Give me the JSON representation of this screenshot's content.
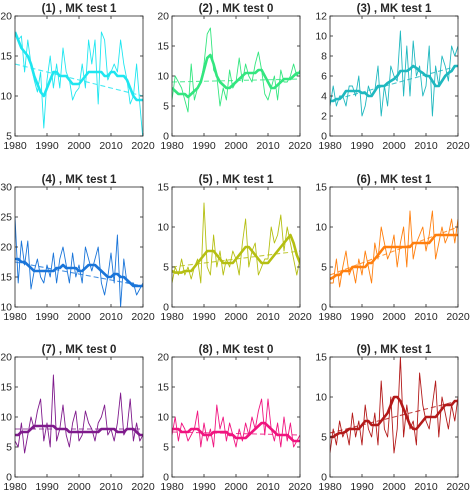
{
  "chart_data": [
    {
      "type": "line",
      "title": "(1) , MK test 1",
      "color": "#1ee6f0",
      "xlim": [
        1980,
        2020
      ],
      "ylim": [
        5,
        20
      ],
      "yticks": [
        5,
        10,
        15,
        20
      ],
      "xticks": [
        1980,
        1990,
        2000,
        2010,
        2020
      ],
      "series": [
        {
          "kind": "annual",
          "values": [
            18,
            17,
            17.5,
            13,
            17,
            14,
            12,
            10.5,
            13,
            6,
            12,
            15,
            11,
            14,
            11,
            16,
            13,
            12,
            9.5,
            10.5,
            11,
            14,
            11,
            17,
            14,
            17,
            9,
            18,
            17,
            12,
            13,
            14,
            13,
            17,
            14,
            12,
            9,
            10,
            14,
            9,
            4.5
          ]
        },
        {
          "kind": "smoothed",
          "values": [
            18,
            17,
            16,
            15.5,
            15,
            14,
            12.5,
            11.5,
            10.5,
            10,
            11,
            12,
            13,
            13,
            12.5,
            12.5,
            12.5,
            12,
            11.5,
            11.5,
            11.5,
            12,
            12.5,
            13,
            13,
            13,
            13,
            13,
            12.5,
            12.5,
            13,
            13,
            12.5,
            12.5,
            12.5,
            12,
            11,
            10,
            9.5,
            9.5,
            9.5
          ]
        },
        {
          "kind": "trend",
          "values": [
            14,
            10
          ]
        }
      ]
    },
    {
      "type": "line",
      "title": "(2) , MK test 0",
      "color": "#33e67f",
      "xlim": [
        1980,
        2020
      ],
      "ylim": [
        0,
        20
      ],
      "yticks": [
        0,
        5,
        10,
        15,
        20
      ],
      "xticks": [
        1980,
        1990,
        2000,
        2010,
        2020
      ],
      "series": [
        {
          "kind": "annual",
          "values": [
            6,
            10,
            9,
            8,
            6,
            4,
            12,
            6,
            8,
            9,
            12,
            17,
            18,
            11,
            10,
            5,
            8,
            6,
            11,
            8,
            9,
            13,
            9,
            12,
            10,
            9,
            12,
            14,
            11,
            7,
            6,
            8,
            10,
            6,
            11,
            9,
            9,
            10,
            12,
            10,
            11
          ]
        },
        {
          "kind": "smoothed",
          "values": [
            8,
            7.5,
            7,
            7,
            7,
            6.5,
            7,
            7.5,
            8,
            9,
            11,
            13,
            13.5,
            12,
            10,
            9,
            8.5,
            8,
            8,
            8.5,
            9,
            9.5,
            10,
            10.5,
            10.5,
            10.5,
            10.5,
            11,
            11,
            10,
            9,
            8,
            8,
            8.5,
            9,
            9.5,
            9.5,
            9.5,
            10,
            10.5,
            10.5
          ]
        },
        {
          "kind": "trend",
          "values": [
            9,
            9.5
          ]
        }
      ]
    },
    {
      "type": "line",
      "title": "(3) , MK test 1",
      "color": "#1fb8bf",
      "xlim": [
        1980,
        2020
      ],
      "ylim": [
        0,
        12
      ],
      "yticks": [
        0,
        2,
        4,
        6,
        8,
        10,
        12
      ],
      "xticks": [
        1980,
        1990,
        2000,
        2010,
        2020
      ],
      "series": [
        {
          "kind": "annual",
          "values": [
            3,
            5,
            3,
            4,
            4,
            3,
            5,
            5,
            4,
            6,
            2,
            3,
            5,
            4,
            4.5,
            7,
            2,
            5,
            3,
            7,
            6,
            5.5,
            10.5,
            4,
            9,
            4,
            9.5,
            6,
            7,
            4,
            5,
            9,
            2,
            7,
            5,
            8,
            7,
            5.5,
            9,
            8,
            9
          ]
        },
        {
          "kind": "smoothed",
          "values": [
            3.5,
            3.5,
            3.7,
            3.7,
            4,
            4.5,
            4.5,
            4.5,
            4.5,
            4.5,
            4.3,
            4.3,
            4,
            4,
            4.5,
            5,
            5,
            5,
            5.3,
            5.5,
            5.7,
            6,
            6.5,
            6.5,
            6.5,
            6.7,
            7,
            6.8,
            6.5,
            6.3,
            6,
            6,
            5.5,
            5,
            5,
            5.5,
            6,
            6.3,
            6.5,
            7,
            7
          ]
        },
        {
          "kind": "trend",
          "values": [
            3.5,
            7
          ]
        }
      ]
    },
    {
      "type": "line",
      "title": "(4) , MK test 1",
      "color": "#1a75d9",
      "xlim": [
        1980,
        2020
      ],
      "ylim": [
        10,
        30
      ],
      "yticks": [
        10,
        15,
        20,
        25,
        30
      ],
      "xticks": [
        1980,
        1990,
        2000,
        2010,
        2020
      ],
      "series": [
        {
          "kind": "annual",
          "values": [
            25,
            14,
            21,
            17,
            21,
            13,
            16,
            18,
            15,
            14,
            17,
            15,
            19,
            14,
            18,
            20,
            17,
            14,
            19,
            15,
            17,
            14,
            20,
            18,
            16,
            18,
            20,
            14,
            12,
            15,
            19,
            14,
            22,
            10,
            18,
            14,
            14,
            14,
            12,
            13,
            14
          ]
        },
        {
          "kind": "smoothed",
          "values": [
            18,
            18,
            17.5,
            17.5,
            17,
            16.5,
            16,
            16,
            16,
            16,
            16,
            16,
            16,
            16.5,
            16.5,
            17,
            16.5,
            16.5,
            16.5,
            16.5,
            16,
            16,
            16.5,
            17,
            17,
            17,
            16.5,
            16,
            15.5,
            15,
            15,
            15.5,
            15.5,
            15,
            15,
            14.5,
            14,
            13.5,
            13.5,
            13.5,
            13.5
          ]
        },
        {
          "kind": "trend",
          "values": [
            17.5,
            13.5
          ]
        }
      ]
    },
    {
      "type": "line",
      "title": "(5) , MK test 1",
      "color": "#b5bf12",
      "xlim": [
        1980,
        2020
      ],
      "ylim": [
        0,
        15
      ],
      "yticks": [
        0,
        5,
        10,
        15
      ],
      "xticks": [
        1980,
        1990,
        2000,
        2010,
        2020
      ],
      "series": [
        {
          "kind": "annual",
          "values": [
            3,
            5,
            4,
            6,
            4,
            5,
            3.5,
            5,
            6,
            3,
            13,
            5,
            4,
            9,
            5,
            7,
            4,
            6,
            5,
            7,
            6,
            4,
            8,
            11,
            5,
            7,
            8,
            4,
            5,
            6,
            6,
            10,
            8,
            9,
            11.5,
            7,
            10,
            8,
            6,
            4,
            6
          ]
        },
        {
          "kind": "smoothed",
          "values": [
            4.5,
            4.3,
            4.3,
            4.3,
            4.5,
            4.5,
            4.5,
            5,
            5.5,
            6,
            6.5,
            7,
            7,
            7,
            6.5,
            6,
            5.5,
            5.5,
            5.5,
            5.5,
            6,
            6.5,
            7,
            7.5,
            7.5,
            7,
            6.5,
            6,
            5.5,
            5.5,
            5.5,
            6,
            6.5,
            7,
            7.5,
            8,
            8.5,
            9,
            8,
            6.5,
            5.5
          ]
        },
        {
          "kind": "trend",
          "values": [
            5,
            7
          ]
        }
      ]
    },
    {
      "type": "line",
      "title": "(6) , MK test 1",
      "color": "#ff7f0e",
      "xlim": [
        1980,
        2020
      ],
      "ylim": [
        0,
        15
      ],
      "yticks": [
        0,
        5,
        10,
        15
      ],
      "xticks": [
        1980,
        1990,
        2000,
        2010,
        2020
      ],
      "series": [
        {
          "kind": "annual",
          "values": [
            3,
            3,
            6,
            2.5,
            5,
            7,
            4,
            5,
            3,
            6,
            4,
            7,
            5,
            3,
            8,
            6,
            10,
            8,
            6,
            7,
            9,
            5,
            8,
            10,
            5,
            12,
            6,
            8,
            9,
            10,
            7,
            9,
            12,
            6,
            8,
            10,
            8,
            9,
            11,
            8,
            11
          ]
        },
        {
          "kind": "smoothed",
          "values": [
            3.5,
            3.7,
            4,
            4,
            4.5,
            4.5,
            4.5,
            5,
            5,
            5,
            5,
            5,
            5.5,
            5.5,
            6,
            6.5,
            7,
            7.5,
            7.5,
            7.5,
            7.5,
            7.5,
            7.5,
            7.5,
            7.5,
            7.5,
            8,
            8,
            8,
            8,
            8,
            8,
            8.5,
            9,
            9,
            9,
            9,
            9,
            9,
            9,
            9
          ]
        },
        {
          "kind": "trend",
          "values": [
            4,
            10
          ]
        }
      ]
    },
    {
      "type": "line",
      "title": "(7) , MK test 0",
      "color": "#7f1a8c",
      "xlim": [
        1980,
        2020
      ],
      "ylim": [
        0,
        20
      ],
      "yticks": [
        0,
        5,
        10,
        15,
        20
      ],
      "xticks": [
        1980,
        1990,
        2000,
        2010,
        2020
      ],
      "series": [
        {
          "kind": "annual",
          "values": [
            6,
            5,
            9,
            4,
            7,
            10,
            8,
            11,
            13,
            6,
            9,
            5,
            17,
            6,
            8,
            12,
            7,
            5,
            9,
            11,
            6,
            7,
            11,
            9,
            8,
            6,
            9,
            10,
            12,
            7,
            8,
            6,
            9,
            14,
            7,
            8,
            13,
            6,
            9,
            6,
            7
          ]
        },
        {
          "kind": "smoothed",
          "values": [
            7,
            7,
            7.5,
            7.5,
            7.5,
            8,
            8.5,
            8.5,
            8.5,
            8.5,
            8.5,
            8.5,
            8.5,
            8,
            8,
            8,
            8,
            7.5,
            7.5,
            7.5,
            7.5,
            7.5,
            7.5,
            7.5,
            7.5,
            7.5,
            7.5,
            8,
            8,
            8,
            8,
            8,
            7.5,
            7.5,
            7.5,
            8,
            8,
            8,
            7.5,
            7,
            7
          ]
        },
        {
          "kind": "trend",
          "values": [
            8,
            8
          ]
        }
      ]
    },
    {
      "type": "line",
      "title": "(8) , MK test 0",
      "color": "#f0147f",
      "xlim": [
        1980,
        2020
      ],
      "ylim": [
        0,
        20
      ],
      "yticks": [
        0,
        5,
        10,
        15,
        20
      ],
      "xticks": [
        1980,
        1990,
        2000,
        2010,
        2020
      ],
      "series": [
        {
          "kind": "annual",
          "values": [
            7,
            10,
            6,
            9,
            8,
            6,
            7,
            8,
            11,
            5,
            9,
            6,
            8,
            5,
            12,
            8,
            10,
            6,
            9,
            7,
            5,
            8,
            6,
            9,
            7,
            10,
            8,
            11,
            13,
            7,
            13,
            8,
            6,
            9,
            5,
            10,
            6,
            9,
            5,
            6,
            7
          ]
        },
        {
          "kind": "smoothed",
          "values": [
            8,
            8,
            8,
            7.5,
            7.5,
            7.5,
            8,
            8,
            8,
            7.5,
            7,
            7,
            7,
            7.5,
            7.5,
            7.5,
            7.5,
            7.5,
            7,
            7,
            6.5,
            6.5,
            6.5,
            6.5,
            7,
            7.5,
            8,
            8.5,
            9,
            9,
            8.5,
            8,
            7.5,
            7,
            7,
            7,
            7,
            6.5,
            6,
            6,
            6
          ]
        },
        {
          "kind": "trend",
          "values": [
            7.5,
            7
          ]
        }
      ]
    },
    {
      "type": "line",
      "title": "(9) , MK test 1",
      "color": "#b31a1a",
      "xlim": [
        1980,
        2020
      ],
      "ylim": [
        0,
        15
      ],
      "yticks": [
        0,
        5,
        10,
        15
      ],
      "xticks": [
        1980,
        1990,
        2000,
        2010,
        2020
      ],
      "series": [
        {
          "kind": "annual",
          "values": [
            3,
            6,
            4,
            7,
            5,
            6,
            4,
            8,
            5,
            7,
            4,
            9,
            6,
            5,
            8,
            4,
            12,
            6,
            5,
            10,
            3,
            6,
            15,
            5,
            9,
            6,
            7,
            4,
            13,
            9,
            7,
            6,
            9,
            12,
            5,
            10,
            8,
            6,
            9,
            7,
            10
          ]
        },
        {
          "kind": "smoothed",
          "values": [
            5,
            5,
            5.3,
            5.5,
            5.5,
            5.7,
            6,
            6,
            6,
            6,
            6.5,
            7,
            7,
            6.5,
            6.5,
            6.5,
            7,
            7.5,
            8,
            9,
            10,
            10,
            9.5,
            8.5,
            7.5,
            6.5,
            6,
            6,
            6.5,
            7,
            7.5,
            7.5,
            7.5,
            7.5,
            8,
            8.5,
            9,
            9,
            9,
            9.5,
            9.5
          ]
        },
        {
          "kind": "trend",
          "values": [
            5.5,
            9.5
          ]
        }
      ]
    }
  ]
}
